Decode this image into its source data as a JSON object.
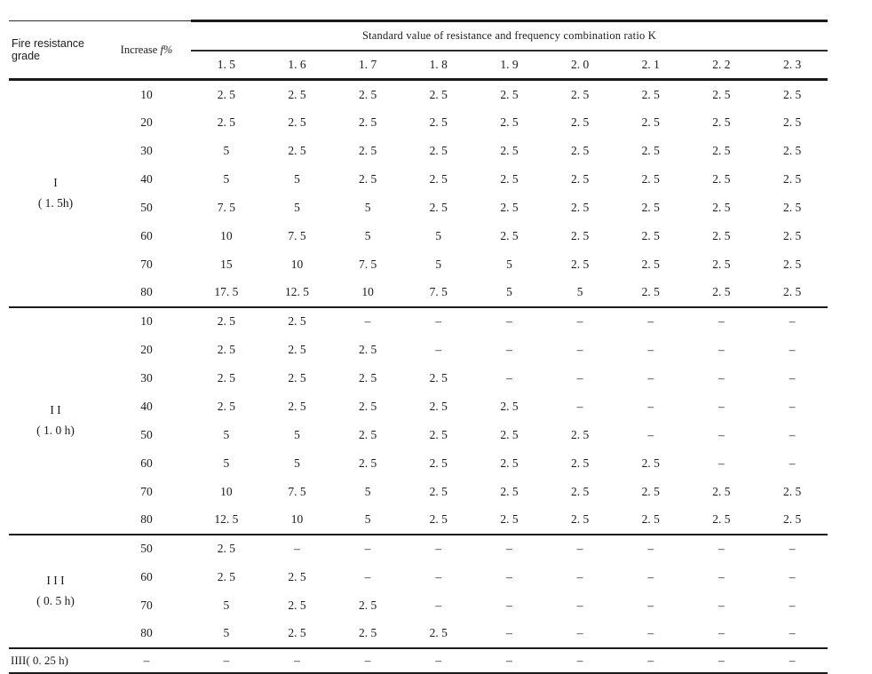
{
  "page": {
    "background_color": "#ffffff",
    "text_color": "#1b1b1b",
    "rule_color": "#1a1a1a"
  },
  "table": {
    "corner_header_line1": "Fire resistance",
    "corner_header_line2": "grade",
    "increase_header_prefix": "Increase",
    "increase_header_symbol": "f%",
    "k_header": "Standard value of resistance and frequency combination ratio K",
    "k_columns": [
      "1. 5",
      "1. 6",
      "1. 7",
      "1. 8",
      "1. 9",
      "2. 0",
      "2. 1",
      "2. 2",
      "2. 3"
    ],
    "sections": [
      {
        "grade_line1": "I",
        "grade_line2": "( 1. 5h)",
        "rows": [
          {
            "increase": "10",
            "values": [
              "2. 5",
              "2. 5",
              "2. 5",
              "2. 5",
              "2. 5",
              "2. 5",
              "2. 5",
              "2. 5",
              "2. 5"
            ]
          },
          {
            "increase": "20",
            "values": [
              "2. 5",
              "2. 5",
              "2. 5",
              "2. 5",
              "2. 5",
              "2. 5",
              "2. 5",
              "2. 5",
              "2. 5"
            ]
          },
          {
            "increase": "30",
            "values": [
              "5",
              "2. 5",
              "2. 5",
              "2. 5",
              "2. 5",
              "2. 5",
              "2. 5",
              "2. 5",
              "2. 5"
            ]
          },
          {
            "increase": "40",
            "values": [
              "5",
              "5",
              "2. 5",
              "2. 5",
              "2. 5",
              "2. 5",
              "2. 5",
              "2. 5",
              "2. 5"
            ]
          },
          {
            "increase": "50",
            "values": [
              "7. 5",
              "5",
              "5",
              "2. 5",
              "2. 5",
              "2. 5",
              "2. 5",
              "2. 5",
              "2. 5"
            ]
          },
          {
            "increase": "60",
            "values": [
              "10",
              "7. 5",
              "5",
              "5",
              "2. 5",
              "2. 5",
              "2. 5",
              "2. 5",
              "2. 5"
            ]
          },
          {
            "increase": "70",
            "values": [
              "15",
              "10",
              "7. 5",
              "5",
              "5",
              "2. 5",
              "2. 5",
              "2. 5",
              "2. 5"
            ]
          },
          {
            "increase": "80",
            "values": [
              "17. 5",
              "12. 5",
              "10",
              "7. 5",
              "5",
              "5",
              "2. 5",
              "2. 5",
              "2. 5"
            ]
          }
        ]
      },
      {
        "grade_line1": "I I",
        "grade_line2": "( 1. 0 h)",
        "rows": [
          {
            "increase": "10",
            "values": [
              "2. 5",
              "2. 5",
              "–",
              "–",
              "–",
              "–",
              "–",
              "–",
              "–"
            ]
          },
          {
            "increase": "20",
            "values": [
              "2. 5",
              "2. 5",
              "2. 5",
              "–",
              "–",
              "–",
              "–",
              "–",
              "–"
            ]
          },
          {
            "increase": "30",
            "values": [
              "2. 5",
              "2. 5",
              "2. 5",
              "2. 5",
              "–",
              "–",
              "–",
              "–",
              "–"
            ]
          },
          {
            "increase": "40",
            "values": [
              "2. 5",
              "2. 5",
              "2. 5",
              "2. 5",
              "2. 5",
              "–",
              "–",
              "–",
              "–"
            ]
          },
          {
            "increase": "50",
            "values": [
              "5",
              "5",
              "2. 5",
              "2. 5",
              "2. 5",
              "2. 5",
              "–",
              "–",
              "–"
            ]
          },
          {
            "increase": "60",
            "values": [
              "5",
              "5",
              "2. 5",
              "2. 5",
              "2. 5",
              "2. 5",
              "2. 5",
              "–",
              "–"
            ]
          },
          {
            "increase": "70",
            "values": [
              "10",
              "7. 5",
              "5",
              "2. 5",
              "2. 5",
              "2. 5",
              "2. 5",
              "2. 5",
              "2. 5"
            ]
          },
          {
            "increase": "80",
            "values": [
              "12. 5",
              "10",
              "5",
              "2. 5",
              "2. 5",
              "2. 5",
              "2. 5",
              "2. 5",
              "2. 5"
            ]
          }
        ]
      },
      {
        "grade_line1": "I I I",
        "grade_line2": "( 0. 5 h)",
        "rows": [
          {
            "increase": "50",
            "values": [
              "2. 5",
              "–",
              "–",
              "–",
              "–",
              "–",
              "–",
              "–",
              "–"
            ]
          },
          {
            "increase": "60",
            "values": [
              "2. 5",
              "2. 5",
              "–",
              "–",
              "–",
              "–",
              "–",
              "–",
              "–"
            ]
          },
          {
            "increase": "70",
            "values": [
              "5",
              "2. 5",
              "2. 5",
              "–",
              "–",
              "–",
              "–",
              "–",
              "–"
            ]
          },
          {
            "increase": "80",
            "values": [
              "5",
              "2. 5",
              "2. 5",
              "2. 5",
              "–",
              "–",
              "–",
              "–",
              "–"
            ]
          }
        ]
      }
    ],
    "footer": {
      "label": "IIII( 0. 25 h)",
      "increase": "–",
      "values": [
        "–",
        "–",
        "–",
        "–",
        "–",
        "–",
        "–",
        "–",
        "–"
      ]
    }
  }
}
